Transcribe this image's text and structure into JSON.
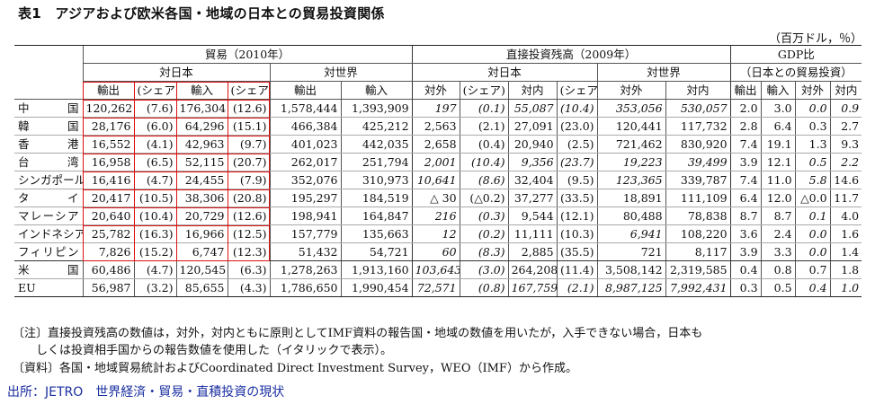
{
  "title": "表1　アジアおよび欧米各国・地域の日本との貿易投資関係",
  "unit": "（百万ドル，％）",
  "header": {
    "trade": "貿易（2010年）",
    "fdi": "直接投資残高（2009年）",
    "gdp": "GDP比",
    "gdp_sub": "（日本との貿易投資）",
    "to_japan": "対日本",
    "to_world": "対世界",
    "export": "輸出",
    "import": "輸入",
    "share": "(シェア)",
    "outward": "対外",
    "inward": "対内",
    "share2": "(シェア)"
  },
  "rows": [
    {
      "country": "中国",
      "c": [
        "120,262",
        "(7.6)",
        "176,304",
        "(12.6)",
        "1,578,444",
        "1,393,909",
        "197",
        "(0.1)",
        "55,087",
        "(10.4)",
        "353,056",
        "530,057",
        "2.0",
        "3.0",
        "0.0",
        "0.9"
      ]
    },
    {
      "country": "韓国",
      "c": [
        "28,176",
        "(6.0)",
        "64,296",
        "(15.1)",
        "466,384",
        "425,212",
        "2,563",
        "(2.1)",
        "27,091",
        "(23.0)",
        "120,441",
        "117,732",
        "2.8",
        "6.4",
        "0.3",
        "2.7"
      ]
    },
    {
      "country": "香港",
      "c": [
        "16,552",
        "(4.1)",
        "42,963",
        "(9.7)",
        "401,023",
        "442,035",
        "2,658",
        "(0.4)",
        "20,940",
        "(2.5)",
        "721,462",
        "830,920",
        "7.4",
        "19.1",
        "1.3",
        "9.3"
      ]
    },
    {
      "country": "台湾",
      "c": [
        "16,958",
        "(6.5)",
        "52,115",
        "(20.7)",
        "262,017",
        "251,794",
        "2,001",
        "(10.4)",
        "9,356",
        "(23.7)",
        "19,223",
        "39,499",
        "3.9",
        "12.1",
        "0.5",
        "2.2"
      ]
    },
    {
      "country": "シンガポール",
      "c": [
        "16,416",
        "(4.7)",
        "24,455",
        "(7.9)",
        "352,076",
        "310,973",
        "10,641",
        "(8.6)",
        "32,404",
        "(9.5)",
        "123,365",
        "339,787",
        "7.4",
        "11.0",
        "5.8",
        "14.6"
      ]
    },
    {
      "country": "タイ",
      "c": [
        "20,417",
        "(10.5)",
        "38,306",
        "(20.8)",
        "195,297",
        "184,519",
        "△ 30",
        "(△0.2)",
        "37,277",
        "(33.5)",
        "18,891",
        "111,109",
        "6.4",
        "12.0",
        "△0.0",
        "11.7"
      ]
    },
    {
      "country": "マレーシア",
      "c": [
        "20,640",
        "(10.4)",
        "20,729",
        "(12.6)",
        "198,941",
        "164,847",
        "216",
        "(0.3)",
        "9,544",
        "(12.1)",
        "80,488",
        "78,838",
        "8.7",
        "8.7",
        "0.1",
        "4.0"
      ]
    },
    {
      "country": "インドネシア",
      "c": [
        "25,782",
        "(16.3)",
        "16,966",
        "(12.5)",
        "157,779",
        "135,663",
        "12",
        "(0.2)",
        "11,111",
        "(10.3)",
        "6,941",
        "108,220",
        "3.6",
        "2.4",
        "0.0",
        "1.6"
      ]
    },
    {
      "country": "フィリピン",
      "c": [
        "7,826",
        "(15.2)",
        "6,747",
        "(12.3)",
        "51,432",
        "54,721",
        "60",
        "(8.3)",
        "2,885",
        "(35.5)",
        "721",
        "8,117",
        "3.9",
        "3.3",
        "0.0",
        "1.4"
      ]
    },
    {
      "country": "米国",
      "c": [
        "60,486",
        "(4.7)",
        "120,545",
        "(6.3)",
        "1,278,263",
        "1,913,160",
        "103,643",
        "(3.0)",
        "264,208",
        "(11.4)",
        "3,508,142",
        "2,319,585",
        "0.4",
        "0.8",
        "0.7",
        "1.8"
      ]
    },
    {
      "country": "EU",
      "c": [
        "56,987",
        "(3.2)",
        "85,655",
        "(4.3)",
        "1,786,650",
        "1,990,454",
        "72,571",
        "(0.8)",
        "167,759",
        "(2.1)",
        "8,987,125",
        "7,992,431",
        "0.3",
        "0.5",
        "0.4",
        "1.0"
      ]
    }
  ],
  "italic": [
    [
      6,
      7,
      8,
      9,
      10,
      11,
      14,
      15
    ],
    [],
    [],
    [
      6,
      7,
      8,
      9,
      10,
      11,
      14,
      15
    ],
    [
      6,
      7,
      10,
      14
    ],
    [],
    [
      6,
      7,
      14
    ],
    [
      6,
      7,
      10,
      14
    ],
    [
      6,
      7,
      14
    ],
    [
      6,
      7
    ],
    [
      6,
      7,
      8,
      9,
      10,
      11,
      14,
      15
    ]
  ],
  "notes": {
    "n1": "〔注〕直接投資残高の数値は，対外，対内ともに原則としてIMF資料の報告国・地域の数値を用いたが，入手できない場合，日本も",
    "n2": "しくは投資相手国からの報告数値を使用した（イタリックで表示）。",
    "n3": "〔資料〕各国・地域貿易統計およびCoordinated Direct Investment Survey，WEO（IMF）から作成。"
  },
  "source": "出所：JETRO　世界経済・貿易・直積投資の現状"
}
